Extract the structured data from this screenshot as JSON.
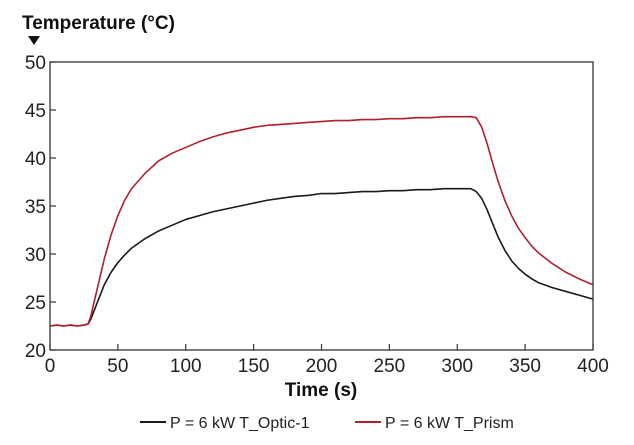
{
  "chart_data": {
    "type": "line",
    "ylabel": "Temperature (°C)",
    "xlabel": "Time (s)",
    "xlim": [
      0,
      400
    ],
    "ylim": [
      20,
      50
    ],
    "x_ticks": [
      0,
      50,
      100,
      150,
      200,
      250,
      300,
      350,
      400
    ],
    "y_ticks": [
      20,
      25,
      30,
      35,
      40,
      45,
      50
    ],
    "grid": false,
    "legend_position": "bottom",
    "series": [
      {
        "name": "P = 6 kW T_Optic-1",
        "color": "#1a1a1a",
        "x": [
          0,
          5,
          10,
          15,
          20,
          25,
          28,
          30,
          35,
          40,
          45,
          50,
          55,
          60,
          70,
          80,
          90,
          100,
          110,
          120,
          130,
          140,
          150,
          160,
          170,
          180,
          190,
          200,
          210,
          220,
          230,
          240,
          250,
          260,
          270,
          280,
          290,
          300,
          310,
          314,
          318,
          322,
          326,
          330,
          335,
          340,
          345,
          350,
          355,
          360,
          370,
          380,
          390,
          400
        ],
        "y": [
          22.5,
          22.6,
          22.5,
          22.6,
          22.5,
          22.6,
          22.7,
          23.2,
          25.0,
          26.8,
          28.1,
          29.1,
          29.9,
          30.6,
          31.6,
          32.4,
          33.0,
          33.6,
          34.0,
          34.4,
          34.7,
          35.0,
          35.3,
          35.6,
          35.8,
          36.0,
          36.1,
          36.3,
          36.3,
          36.4,
          36.5,
          36.5,
          36.6,
          36.6,
          36.7,
          36.7,
          36.8,
          36.8,
          36.8,
          36.5,
          35.8,
          34.6,
          33.2,
          31.8,
          30.4,
          29.3,
          28.5,
          27.9,
          27.4,
          27.0,
          26.5,
          26.1,
          25.7,
          25.3
        ]
      },
      {
        "name": "P = 6 kW T_Prism",
        "color": "#b0202e",
        "x": [
          0,
          5,
          10,
          15,
          20,
          25,
          28,
          30,
          35,
          40,
          45,
          50,
          55,
          60,
          70,
          80,
          90,
          100,
          110,
          120,
          130,
          140,
          150,
          160,
          170,
          180,
          190,
          200,
          210,
          220,
          230,
          240,
          250,
          260,
          270,
          280,
          290,
          300,
          310,
          314,
          318,
          322,
          326,
          330,
          335,
          340,
          345,
          350,
          355,
          360,
          370,
          380,
          390,
          400
        ],
        "y": [
          22.5,
          22.6,
          22.5,
          22.6,
          22.5,
          22.6,
          22.7,
          23.5,
          26.5,
          29.5,
          32.0,
          34.0,
          35.6,
          36.8,
          38.4,
          39.7,
          40.5,
          41.1,
          41.7,
          42.2,
          42.6,
          42.9,
          43.2,
          43.4,
          43.5,
          43.6,
          43.7,
          43.8,
          43.9,
          43.9,
          44.0,
          44.0,
          44.1,
          44.1,
          44.2,
          44.2,
          44.3,
          44.3,
          44.3,
          44.2,
          43.2,
          41.5,
          39.5,
          37.6,
          35.6,
          34.0,
          32.7,
          31.7,
          30.8,
          30.1,
          29.0,
          28.1,
          27.4,
          26.8
        ]
      }
    ]
  }
}
